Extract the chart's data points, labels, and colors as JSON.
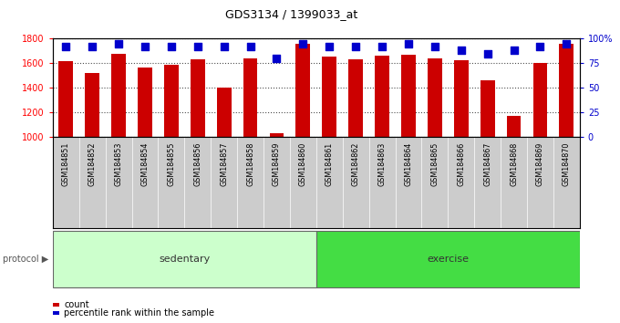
{
  "title": "GDS3134 / 1399033_at",
  "samples": [
    "GSM184851",
    "GSM184852",
    "GSM184853",
    "GSM184854",
    "GSM184855",
    "GSM184856",
    "GSM184857",
    "GSM184858",
    "GSM184859",
    "GSM184860",
    "GSM184861",
    "GSM184862",
    "GSM184863",
    "GSM184864",
    "GSM184865",
    "GSM184866",
    "GSM184867",
    "GSM184868",
    "GSM184869",
    "GSM184870"
  ],
  "counts": [
    1620,
    1525,
    1680,
    1570,
    1590,
    1635,
    1400,
    1640,
    1035,
    1760,
    1655,
    1630,
    1660,
    1670,
    1640,
    1625,
    1465,
    1175,
    1600,
    1760
  ],
  "percentiles": [
    92,
    92,
    95,
    92,
    92,
    92,
    92,
    92,
    80,
    95,
    92,
    92,
    92,
    95,
    92,
    88,
    85,
    88,
    92,
    95
  ],
  "sedentary_count": 10,
  "exercise_count": 10,
  "ylim_left": [
    1000,
    1800
  ],
  "ylim_right": [
    0,
    100
  ],
  "yticks_left": [
    1000,
    1200,
    1400,
    1600,
    1800
  ],
  "yticks_right": [
    0,
    25,
    50,
    75,
    100
  ],
  "bar_color": "#cc0000",
  "dot_color": "#0000cc",
  "sedentary_color": "#ccffcc",
  "exercise_color": "#44dd44",
  "xtick_bg_color": "#cccccc",
  "protocol_label": "protocol",
  "sedentary_label": "sedentary",
  "exercise_label": "exercise",
  "legend_count_label": "count",
  "legend_percentile_label": "percentile rank within the sample",
  "bar_width": 0.55,
  "dot_size": 30,
  "bar_baseline": 1000,
  "figsize": [
    6.8,
    3.54
  ],
  "dpi": 100
}
